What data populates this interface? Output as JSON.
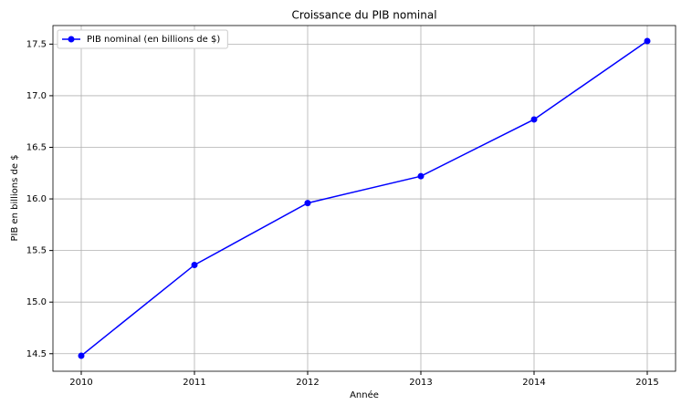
{
  "chart_data": {
    "type": "line",
    "title": "Croissance du PIB nominal",
    "x_label": "Année",
    "y_label": "PIB en billions de $",
    "x": [
      2010,
      2011,
      2012,
      2013,
      2014,
      2015
    ],
    "series": [
      {
        "name": "PIB nominal (en billions de $)",
        "color": "#0000ff",
        "values": [
          14.48,
          15.36,
          15.96,
          16.22,
          16.77,
          17.53
        ]
      }
    ],
    "xlim": [
      2009.75,
      2015.25
    ],
    "xticks": [
      2010,
      2011,
      2012,
      2013,
      2014,
      2015
    ],
    "ylim": [
      14.33,
      17.68
    ],
    "yticks": [
      14.5,
      {
        "value": 15,
        "label": "15.0"
      },
      15.5,
      {
        "value": 16,
        "label": "16.0"
      },
      16.5,
      {
        "value": 17,
        "label": "17.0"
      },
      17.5
    ],
    "grid": true,
    "legend": "upper left"
  }
}
